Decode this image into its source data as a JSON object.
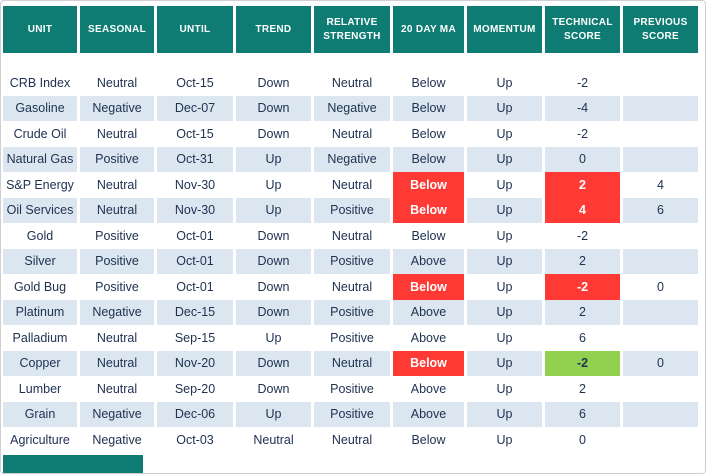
{
  "chart_data": {
    "type": "table",
    "columns": [
      "UNIT",
      "SEASONAL",
      "UNTIL",
      "TREND",
      "RELATIVE STRENGTH",
      "20 DAY MA",
      "MOMENTUM",
      "TECHNICAL SCORE",
      "PREVIOUS SCORE"
    ],
    "rows": [
      {
        "cells": [
          "CRB Index",
          "Neutral",
          "Oct-15",
          "Down",
          "Neutral",
          "Below",
          "Up",
          "-2",
          ""
        ],
        "styles": {}
      },
      {
        "cells": [
          "Gasoline",
          "Negative",
          "Dec-07",
          "Down",
          "Negative",
          "Below",
          "Up",
          "-4",
          ""
        ],
        "styles": {}
      },
      {
        "cells": [
          "Crude Oil",
          "Neutral",
          "Oct-15",
          "Down",
          "Neutral",
          "Below",
          "Up",
          "-2",
          ""
        ],
        "styles": {}
      },
      {
        "cells": [
          "Natural Gas",
          "Positive",
          "Oct-31",
          "Up",
          "Negative",
          "Below",
          "Up",
          "0",
          ""
        ],
        "styles": {}
      },
      {
        "cells": [
          "S&P Energy",
          "Neutral",
          "Nov-30",
          "Up",
          "Neutral",
          "Below",
          "Up",
          "2",
          "4"
        ],
        "styles": {
          "5": "red",
          "7": "red"
        }
      },
      {
        "cells": [
          "Oil Services",
          "Neutral",
          "Nov-30",
          "Up",
          "Positive",
          "Below",
          "Up",
          "4",
          "6"
        ],
        "styles": {
          "5": "red",
          "7": "red"
        }
      },
      {
        "cells": [
          "Gold",
          "Positive",
          "Oct-01",
          "Down",
          "Neutral",
          "Below",
          "Up",
          "-2",
          ""
        ],
        "styles": {}
      },
      {
        "cells": [
          "Silver",
          "Positive",
          "Oct-01",
          "Down",
          "Positive",
          "Above",
          "Up",
          "2",
          ""
        ],
        "styles": {}
      },
      {
        "cells": [
          "Gold Bug",
          "Positive",
          "Oct-01",
          "Down",
          "Neutral",
          "Below",
          "Up",
          "-2",
          "0"
        ],
        "styles": {
          "5": "red",
          "7": "red"
        }
      },
      {
        "cells": [
          "Platinum",
          "Negative",
          "Dec-15",
          "Down",
          "Positive",
          "Above",
          "Up",
          "2",
          ""
        ],
        "styles": {}
      },
      {
        "cells": [
          "Palladium",
          "Neutral",
          "Sep-15",
          "Up",
          "Positive",
          "Above",
          "Up",
          "6",
          ""
        ],
        "styles": {}
      },
      {
        "cells": [
          "Copper",
          "Neutral",
          "Nov-20",
          "Down",
          "Neutral",
          "Below",
          "Up",
          "-2",
          "0"
        ],
        "styles": {
          "5": "red",
          "7": "green"
        }
      },
      {
        "cells": [
          "Lumber",
          "Neutral",
          "Sep-20",
          "Down",
          "Positive",
          "Above",
          "Up",
          "2",
          ""
        ],
        "styles": {}
      },
      {
        "cells": [
          "Grain",
          "Negative",
          "Dec-06",
          "Up",
          "Positive",
          "Above",
          "Up",
          "6",
          ""
        ],
        "styles": {}
      },
      {
        "cells": [
          "Agriculture",
          "Negative",
          "Oct-03",
          "Neutral",
          "Neutral",
          "Below",
          "Up",
          "0",
          ""
        ],
        "styles": {}
      }
    ]
  },
  "colors": {
    "header_bg": "#0f7c73",
    "header_text": "#ffffff",
    "row_alt": "#dce6f1",
    "text": "#203352",
    "highlight_red": "#ff3a35",
    "highlight_green": "#92d050"
  }
}
